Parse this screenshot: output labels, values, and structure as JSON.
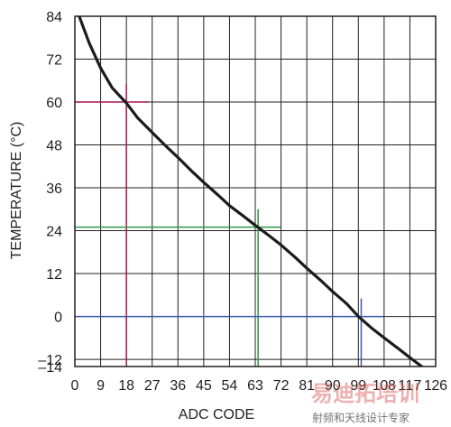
{
  "chart_data": {
    "type": "line",
    "xlabel": "ADC CODE",
    "ylabel": "TEMPERATURE (°C)",
    "xlim": [
      0,
      126
    ],
    "ylim": [
      -14,
      84
    ],
    "x_ticks": [
      0,
      9,
      18,
      27,
      36,
      45,
      54,
      63,
      72,
      81,
      90,
      99,
      108,
      117,
      126
    ],
    "x_tick_labels": [
      "0",
      "9",
      "18",
      "27",
      "36",
      "45",
      "54",
      "63",
      "72",
      "81",
      "90",
      "99",
      "108",
      "117",
      "126"
    ],
    "y_ticks": [
      -14,
      -12,
      0,
      12,
      24,
      36,
      48,
      60,
      72,
      84
    ],
    "y_tick_labels": [
      "–14",
      "–12",
      "0",
      "12",
      "24",
      "36",
      "48",
      "60",
      "72",
      "84"
    ],
    "grid": true,
    "series": [
      {
        "x": [
          1.5,
          5,
          9,
          13,
          18,
          22,
          27,
          32,
          36,
          41,
          45,
          50,
          54,
          59,
          63,
          68,
          72,
          77,
          81,
          86,
          90,
          95,
          99,
          104,
          108,
          113,
          117,
          122,
          126
        ],
        "y": [
          84,
          76.5,
          69.5,
          64,
          59.7,
          55.5,
          51.5,
          47.5,
          44.5,
          40.5,
          37.5,
          34,
          31,
          28,
          25.5,
          22.5,
          20,
          16.5,
          13.5,
          10,
          7,
          3.5,
          0,
          -3.5,
          -6,
          -9,
          -11.5,
          -14.5,
          -17.5
        ]
      }
    ],
    "annotations": [
      {
        "x": 18,
        "y": 60,
        "color": "#a8174f"
      },
      {
        "x": 64,
        "y": 25,
        "color": "#2a9a45"
      },
      {
        "x": 100,
        "y": 0,
        "color": "#3c5bb0"
      }
    ],
    "line_color": "#1c1c1c",
    "grid_color": "#231f20"
  },
  "watermark": {
    "main": "易迪拓培训",
    "sub": "射频和天线设计专家"
  }
}
